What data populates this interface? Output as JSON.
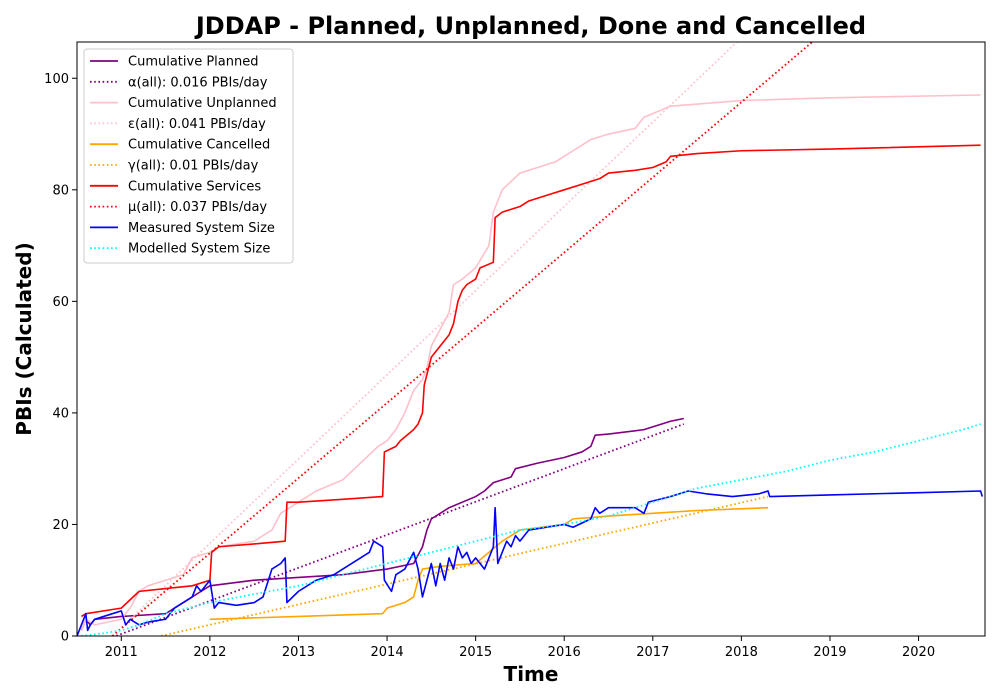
{
  "chart_data": {
    "type": "line",
    "title": "JDDAP - Planned, Unplanned, Done  and Cancelled",
    "xlabel": "Time",
    "ylabel": "PBIs (Calculated)",
    "xlim": [
      2010.5,
      2020.75
    ],
    "ylim": [
      0,
      106.5
    ],
    "x_ticks": [
      2011,
      2012,
      2013,
      2014,
      2015,
      2016,
      2017,
      2018,
      2019,
      2020
    ],
    "x_tick_labels": [
      "2011",
      "2012",
      "2013",
      "2014",
      "2015",
      "2016",
      "2017",
      "2018",
      "2019",
      "2020"
    ],
    "y_ticks": [
      0,
      20,
      40,
      60,
      80,
      100
    ],
    "y_tick_labels": [
      "0",
      "20",
      "40",
      "60",
      "80",
      "100"
    ],
    "grid": false,
    "legend_position": "upper-left",
    "series": [
      {
        "name": "Cumulative Planned",
        "color": "#800080",
        "style": "solid",
        "points": [
          [
            2010.55,
            1
          ],
          [
            2010.6,
            3
          ],
          [
            2010.65,
            2
          ],
          [
            2010.7,
            3
          ],
          [
            2011.0,
            3.5
          ],
          [
            2011.5,
            4
          ],
          [
            2011.9,
            8
          ],
          [
            2012.0,
            9
          ],
          [
            2012.5,
            10
          ],
          [
            2013.0,
            10.5
          ],
          [
            2013.5,
            11
          ],
          [
            2014.0,
            12
          ],
          [
            2014.3,
            13
          ],
          [
            2014.4,
            16
          ],
          [
            2014.45,
            19
          ],
          [
            2014.5,
            21
          ],
          [
            2014.7,
            23
          ],
          [
            2015.0,
            25
          ],
          [
            2015.1,
            26
          ],
          [
            2015.2,
            27.5
          ],
          [
            2015.4,
            28.5
          ],
          [
            2015.45,
            30
          ],
          [
            2015.7,
            31
          ],
          [
            2016.0,
            32
          ],
          [
            2016.2,
            33
          ],
          [
            2016.3,
            34
          ],
          [
            2016.35,
            36
          ],
          [
            2016.5,
            36.2
          ],
          [
            2016.9,
            37
          ],
          [
            2017.2,
            38.5
          ],
          [
            2017.35,
            39
          ]
        ]
      },
      {
        "name": "α(all): 0.016 PBIs/day",
        "color": "#800080",
        "style": "dotted",
        "points": [
          [
            2010.5,
            -2.6
          ],
          [
            2017.35,
            38
          ]
        ]
      },
      {
        "name": "Cumulative Unplanned",
        "color": "#ffc0cb",
        "style": "solid",
        "points": [
          [
            2010.55,
            1
          ],
          [
            2010.6,
            3
          ],
          [
            2010.7,
            2
          ],
          [
            2011.0,
            3
          ],
          [
            2011.1,
            5
          ],
          [
            2011.2,
            8
          ],
          [
            2011.3,
            9
          ],
          [
            2011.5,
            10
          ],
          [
            2011.7,
            11
          ],
          [
            2011.8,
            14
          ],
          [
            2012.0,
            15
          ],
          [
            2012.1,
            16
          ],
          [
            2012.5,
            17
          ],
          [
            2012.7,
            19
          ],
          [
            2012.8,
            22
          ],
          [
            2013.0,
            24
          ],
          [
            2013.2,
            26
          ],
          [
            2013.5,
            28
          ],
          [
            2013.7,
            31
          ],
          [
            2013.9,
            34
          ],
          [
            2014.0,
            35
          ],
          [
            2014.1,
            37
          ],
          [
            2014.2,
            40
          ],
          [
            2014.3,
            44
          ],
          [
            2014.4,
            46
          ],
          [
            2014.45,
            48
          ],
          [
            2014.5,
            52
          ],
          [
            2014.6,
            55
          ],
          [
            2014.7,
            58
          ],
          [
            2014.75,
            63
          ],
          [
            2014.85,
            64
          ],
          [
            2015.0,
            66
          ],
          [
            2015.15,
            70
          ],
          [
            2015.2,
            76
          ],
          [
            2015.3,
            80
          ],
          [
            2015.5,
            83
          ],
          [
            2015.7,
            84
          ],
          [
            2015.9,
            85
          ],
          [
            2016.0,
            86
          ],
          [
            2016.1,
            87
          ],
          [
            2016.3,
            89
          ],
          [
            2016.5,
            90
          ],
          [
            2016.8,
            91
          ],
          [
            2016.9,
            93
          ],
          [
            2017.2,
            95
          ],
          [
            2018.0,
            96
          ],
          [
            2019.0,
            96.5
          ],
          [
            2020.7,
            97
          ]
        ]
      },
      {
        "name": "ε(all): 0.041 PBIs/day",
        "color": "#ffc0cb",
        "style": "dotted",
        "points": [
          [
            2010.9,
            0
          ],
          [
            2017.95,
            106.5
          ]
        ]
      },
      {
        "name": "Cumulative Cancelled",
        "color": "#ffa500",
        "style": "solid",
        "points": [
          [
            2012.0,
            3
          ],
          [
            2013.0,
            3.5
          ],
          [
            2013.95,
            4
          ],
          [
            2014.0,
            5
          ],
          [
            2014.2,
            6
          ],
          [
            2014.3,
            7
          ],
          [
            2014.35,
            10
          ],
          [
            2014.4,
            12
          ],
          [
            2014.6,
            12.5
          ],
          [
            2015.0,
            13
          ],
          [
            2015.3,
            17
          ],
          [
            2015.5,
            19
          ],
          [
            2016.0,
            20
          ],
          [
            2016.1,
            21
          ],
          [
            2016.5,
            21.5
          ],
          [
            2017.0,
            22
          ],
          [
            2017.5,
            22.5
          ],
          [
            2018.3,
            23
          ]
        ]
      },
      {
        "name": "γ(all): 0.01 PBIs/day",
        "color": "#ffa500",
        "style": "dotted",
        "points": [
          [
            2011.45,
            0
          ],
          [
            2018.3,
            25
          ]
        ]
      },
      {
        "name": "Cumulative Services",
        "color": "#ff0000",
        "style": "solid",
        "points": [
          [
            2010.55,
            3.5
          ],
          [
            2010.6,
            4
          ],
          [
            2011.0,
            5
          ],
          [
            2011.1,
            6.5
          ],
          [
            2011.2,
            8
          ],
          [
            2011.5,
            8.5
          ],
          [
            2011.8,
            9
          ],
          [
            2012.0,
            10
          ],
          [
            2012.02,
            15
          ],
          [
            2012.1,
            16
          ],
          [
            2012.5,
            16.5
          ],
          [
            2012.85,
            17
          ],
          [
            2012.87,
            24
          ],
          [
            2013.0,
            24
          ],
          [
            2013.5,
            24.5
          ],
          [
            2013.95,
            25
          ],
          [
            2013.97,
            33
          ],
          [
            2014.1,
            34
          ],
          [
            2014.15,
            35
          ],
          [
            2014.3,
            37
          ],
          [
            2014.35,
            38
          ],
          [
            2014.4,
            40
          ],
          [
            2014.42,
            45
          ],
          [
            2014.5,
            50
          ],
          [
            2014.6,
            52
          ],
          [
            2014.7,
            54
          ],
          [
            2014.75,
            56
          ],
          [
            2014.8,
            60
          ],
          [
            2014.85,
            62
          ],
          [
            2014.9,
            63
          ],
          [
            2015.0,
            64
          ],
          [
            2015.05,
            66
          ],
          [
            2015.2,
            67
          ],
          [
            2015.22,
            75
          ],
          [
            2015.3,
            76
          ],
          [
            2015.5,
            77
          ],
          [
            2015.6,
            78
          ],
          [
            2015.8,
            79
          ],
          [
            2016.0,
            80
          ],
          [
            2016.2,
            81
          ],
          [
            2016.4,
            82
          ],
          [
            2016.5,
            83
          ],
          [
            2016.8,
            83.5
          ],
          [
            2017.0,
            84
          ],
          [
            2017.15,
            85
          ],
          [
            2017.2,
            86
          ],
          [
            2017.5,
            86.5
          ],
          [
            2018.0,
            87
          ],
          [
            2019.0,
            87.3
          ],
          [
            2020.7,
            88
          ]
        ]
      },
      {
        "name": "μ(all): 0.037 PBIs/day",
        "color": "#ff0000",
        "style": "dotted",
        "points": [
          [
            2010.9,
            0
          ],
          [
            2018.8,
            106.5
          ]
        ]
      },
      {
        "name": "Measured System Size",
        "color": "#0000ff",
        "style": "solid",
        "points": [
          [
            2010.5,
            0
          ],
          [
            2010.55,
            2
          ],
          [
            2010.6,
            4
          ],
          [
            2010.62,
            1
          ],
          [
            2010.65,
            2
          ],
          [
            2010.7,
            3
          ],
          [
            2010.9,
            4
          ],
          [
            2011.0,
            4.5
          ],
          [
            2011.05,
            2
          ],
          [
            2011.1,
            3
          ],
          [
            2011.2,
            2
          ],
          [
            2011.3,
            2.5
          ],
          [
            2011.5,
            3
          ],
          [
            2011.6,
            5
          ],
          [
            2011.7,
            6
          ],
          [
            2011.8,
            7
          ],
          [
            2011.85,
            9
          ],
          [
            2011.9,
            8
          ],
          [
            2012.0,
            10
          ],
          [
            2012.05,
            5
          ],
          [
            2012.1,
            6
          ],
          [
            2012.3,
            5.5
          ],
          [
            2012.5,
            6
          ],
          [
            2012.6,
            7
          ],
          [
            2012.7,
            12
          ],
          [
            2012.8,
            13
          ],
          [
            2012.85,
            14
          ],
          [
            2012.87,
            6
          ],
          [
            2013.0,
            8
          ],
          [
            2013.2,
            10
          ],
          [
            2013.4,
            11
          ],
          [
            2013.5,
            12
          ],
          [
            2013.7,
            14
          ],
          [
            2013.8,
            15
          ],
          [
            2013.85,
            17
          ],
          [
            2013.9,
            16.5
          ],
          [
            2013.95,
            16
          ],
          [
            2013.97,
            10
          ],
          [
            2014.05,
            8
          ],
          [
            2014.1,
            11
          ],
          [
            2014.2,
            12
          ],
          [
            2014.3,
            15
          ],
          [
            2014.35,
            12
          ],
          [
            2014.4,
            7
          ],
          [
            2014.45,
            10
          ],
          [
            2014.5,
            13
          ],
          [
            2014.55,
            9
          ],
          [
            2014.6,
            13
          ],
          [
            2014.65,
            10
          ],
          [
            2014.7,
            14
          ],
          [
            2014.75,
            12
          ],
          [
            2014.8,
            16
          ],
          [
            2014.85,
            14
          ],
          [
            2014.9,
            15
          ],
          [
            2014.95,
            13
          ],
          [
            2015.0,
            14
          ],
          [
            2015.1,
            12
          ],
          [
            2015.15,
            14
          ],
          [
            2015.2,
            16
          ],
          [
            2015.22,
            23
          ],
          [
            2015.25,
            13
          ],
          [
            2015.3,
            15
          ],
          [
            2015.35,
            17
          ],
          [
            2015.4,
            16
          ],
          [
            2015.45,
            18
          ],
          [
            2015.5,
            17
          ],
          [
            2015.6,
            19
          ],
          [
            2015.8,
            19.5
          ],
          [
            2016.0,
            20
          ],
          [
            2016.1,
            19.5
          ],
          [
            2016.3,
            21
          ],
          [
            2016.35,
            23
          ],
          [
            2016.4,
            22
          ],
          [
            2016.5,
            23
          ],
          [
            2016.8,
            23
          ],
          [
            2016.9,
            22
          ],
          [
            2016.95,
            24
          ],
          [
            2017.2,
            25
          ],
          [
            2017.4,
            26
          ],
          [
            2017.6,
            25.5
          ],
          [
            2017.9,
            25
          ],
          [
            2018.2,
            25.5
          ],
          [
            2018.3,
            26
          ],
          [
            2018.32,
            25
          ],
          [
            2019.0,
            25.3
          ],
          [
            2020.0,
            25.7
          ],
          [
            2020.7,
            26
          ],
          [
            2020.72,
            25
          ]
        ]
      },
      {
        "name": "Modelled System Size",
        "color": "#00ffff",
        "style": "dotted",
        "points": [
          [
            2010.55,
            0
          ],
          [
            2010.8,
            0.5
          ],
          [
            2011.0,
            1
          ],
          [
            2011.2,
            2
          ],
          [
            2011.5,
            4
          ],
          [
            2012.0,
            6
          ],
          [
            2012.5,
            7.5
          ],
          [
            2013.0,
            9
          ],
          [
            2013.5,
            11
          ],
          [
            2014.0,
            13
          ],
          [
            2014.5,
            15
          ],
          [
            2015.0,
            17
          ],
          [
            2015.5,
            19
          ],
          [
            2016.0,
            20
          ],
          [
            2016.5,
            21.5
          ],
          [
            2017.0,
            24
          ],
          [
            2017.5,
            26.5
          ],
          [
            2018.0,
            28
          ],
          [
            2018.5,
            29.5
          ],
          [
            2019.0,
            31.5
          ],
          [
            2019.5,
            33
          ],
          [
            2020.0,
            35
          ],
          [
            2020.5,
            37
          ],
          [
            2020.7,
            38
          ]
        ]
      }
    ]
  }
}
